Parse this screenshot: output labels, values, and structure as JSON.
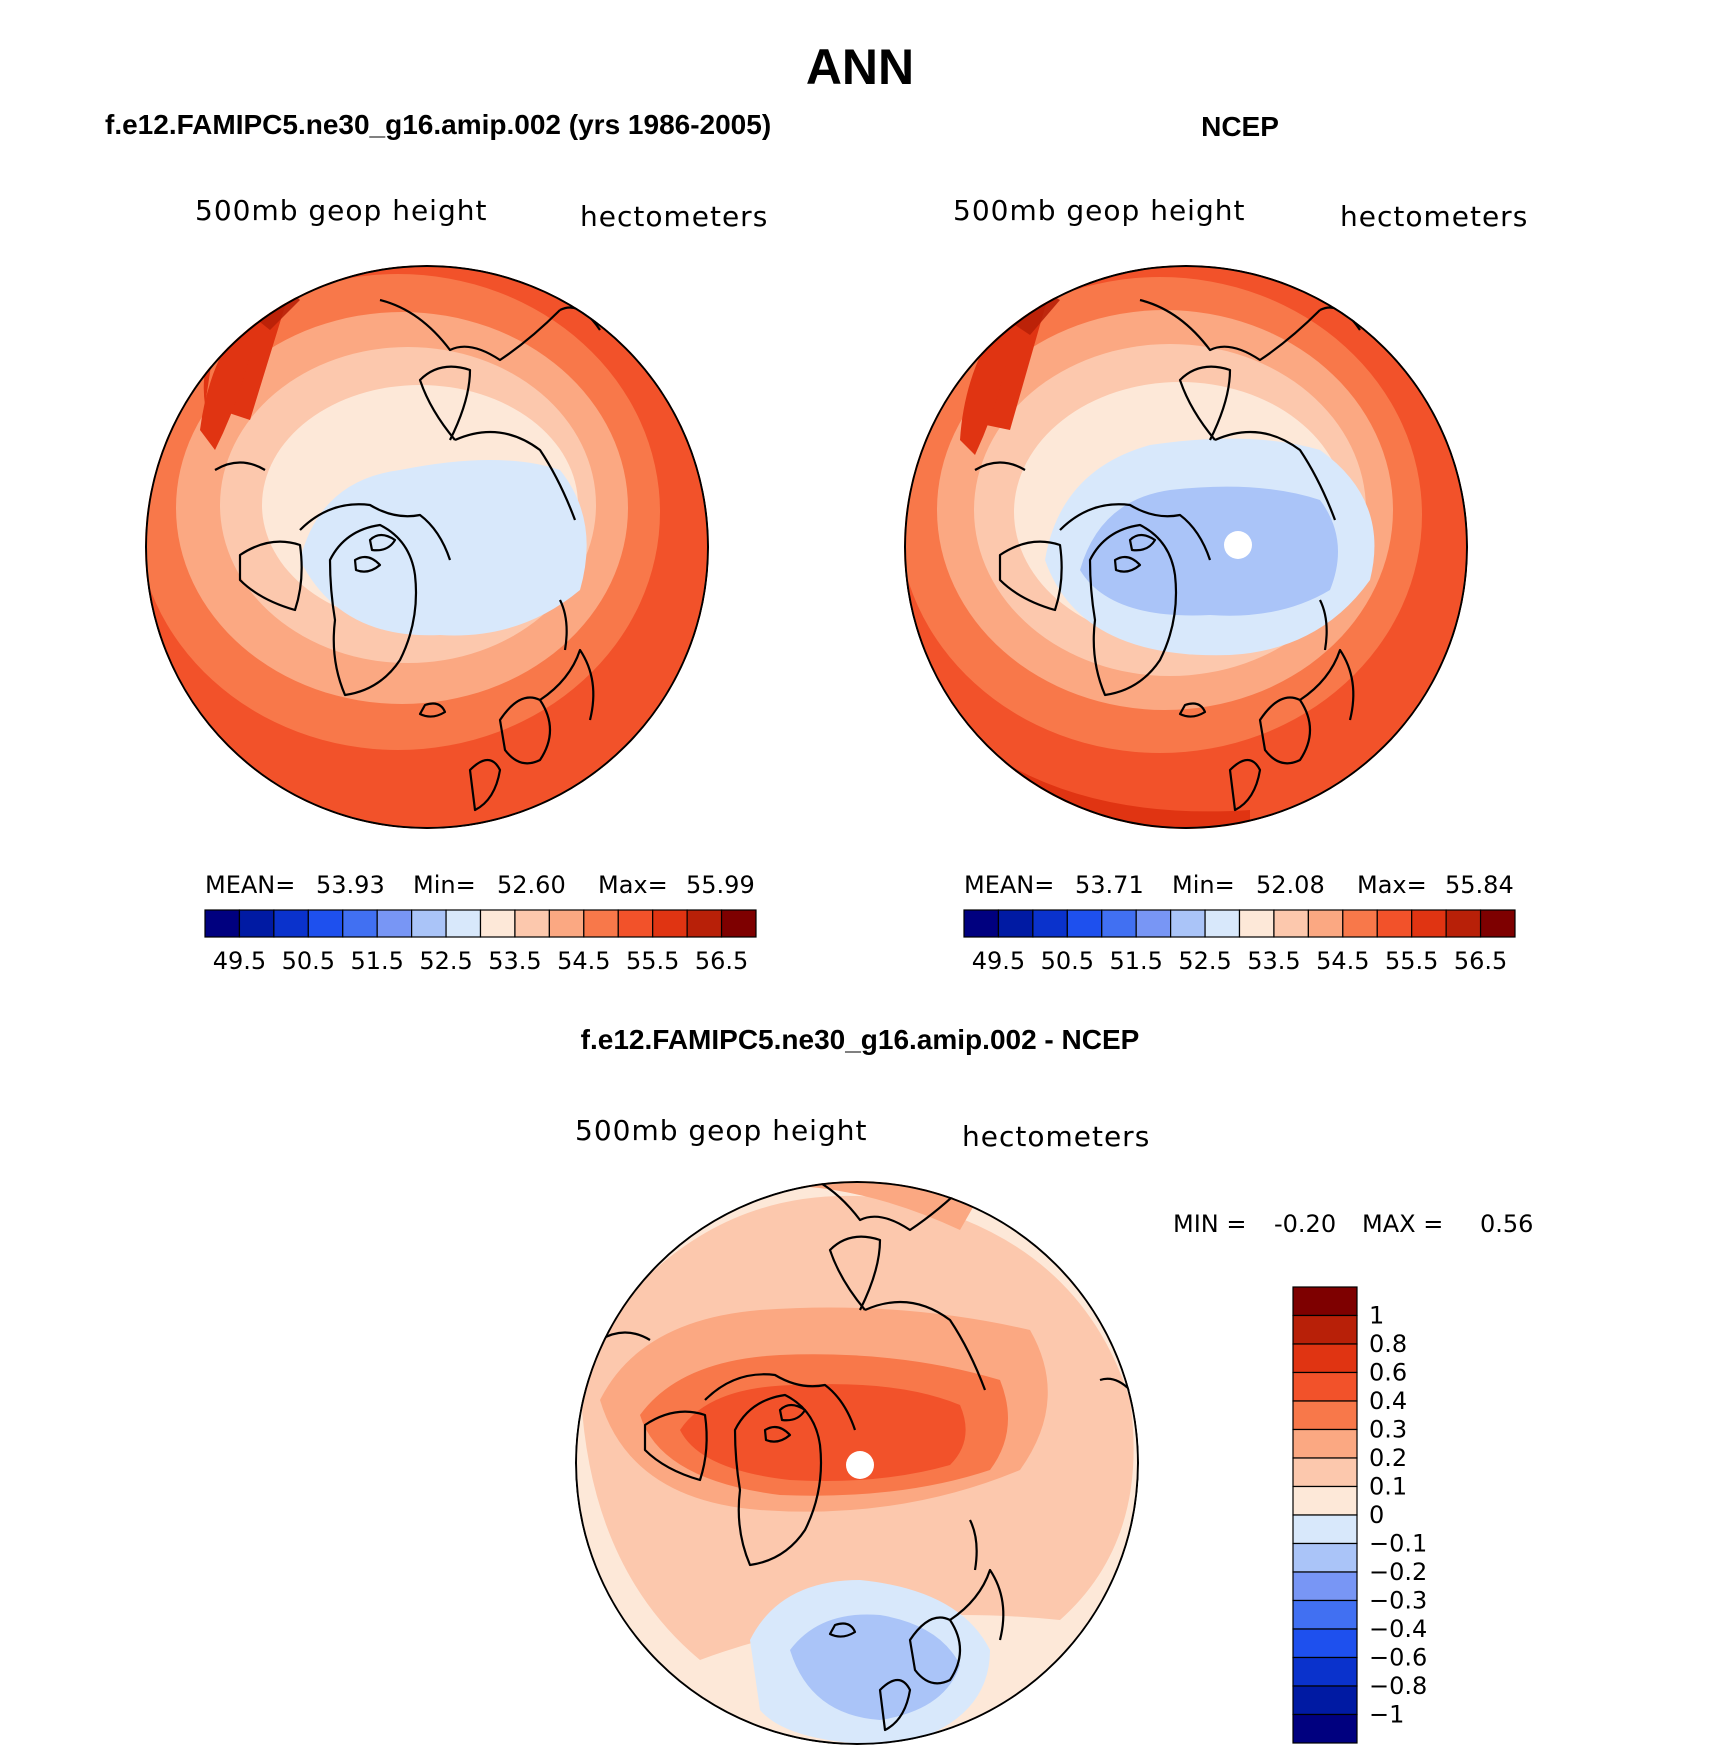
{
  "title": "ANN",
  "panels": [
    {
      "heading": "f.e12.FAMIPC5.ne30_g16.amip.002 (yrs 1986-2005)",
      "field_label": "500mb geop height",
      "units": "hectometers",
      "stats": {
        "mean_label": "MEAN=",
        "mean": "53.93",
        "min_label": "Min=",
        "min": "52.60",
        "max_label": "Max=",
        "max": "55.99"
      },
      "has_missing_pole": false
    },
    {
      "heading": "NCEP",
      "field_label": "500mb geop height",
      "units": "hectometers",
      "stats": {
        "mean_label": "MEAN=",
        "mean": "53.71",
        "min_label": "Min=",
        "min": "52.08",
        "max_label": "Max=",
        "max": "55.84"
      },
      "has_missing_pole": true
    }
  ],
  "horizontal_colorbar": {
    "colors": [
      "#00007f",
      "#001aa3",
      "#0a32cc",
      "#1e50ee",
      "#4170f2",
      "#7896f5",
      "#aac4f8",
      "#d8e8fb",
      "#fde8d8",
      "#fcc8ad",
      "#fba882",
      "#f8784a",
      "#f2522a",
      "#e03412",
      "#b82008",
      "#7e0000"
    ],
    "tick_labels": [
      "49.5",
      "50.5",
      "51.5",
      "52.5",
      "53.5",
      "54.5",
      "55.5",
      "56.5"
    ]
  },
  "difference_panel": {
    "heading": "f.e12.FAMIPC5.ne30_g16.amip.002 - NCEP",
    "field_label": "500mb geop height",
    "units": "hectometers",
    "min_label": "MIN =",
    "min": "-0.20",
    "max_label": "MAX =",
    "max": "0.56"
  },
  "vertical_colorbar": {
    "colors_top_to_bottom": [
      "#7e0000",
      "#b82008",
      "#e03412",
      "#f2522a",
      "#f8784a",
      "#fba882",
      "#fcc8ad",
      "#fde8d8",
      "#d8e8fb",
      "#aac4f8",
      "#7896f5",
      "#4170f2",
      "#1e50ee",
      "#0a32cc",
      "#001aa3",
      "#00007f"
    ],
    "tick_labels_top_to_bottom": [
      "1",
      "0.8",
      "0.6",
      "0.4",
      "0.3",
      "0.2",
      "0.1",
      "0",
      "−0.1",
      "−0.2",
      "−0.3",
      "−0.4",
      "−0.6",
      "−0.8",
      "−1"
    ]
  }
}
